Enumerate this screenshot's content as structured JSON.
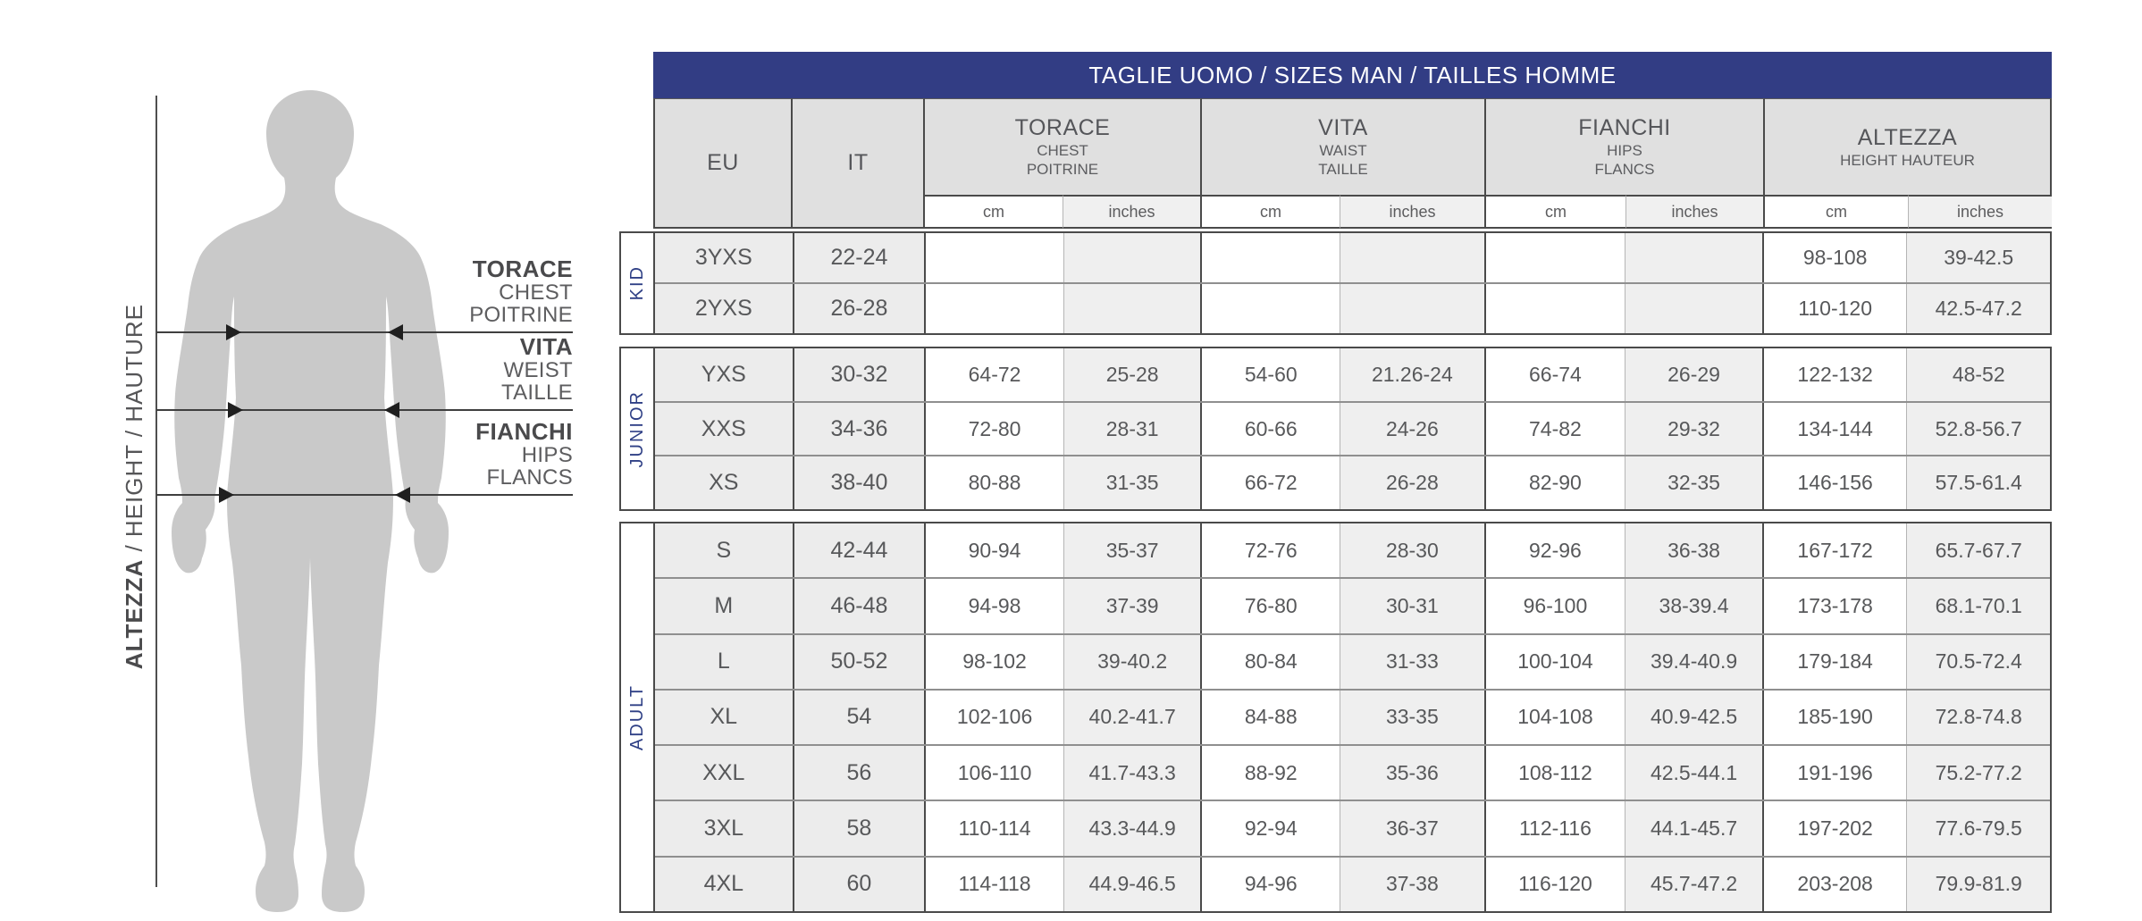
{
  "colors": {
    "accent_navy": "#323d84",
    "section_label_navy": "#2e3f85",
    "silhouette_gray": "#c9c9c9",
    "header_cell_gray": "#e0e0e0",
    "alt_cell_gray": "#efefef"
  },
  "figure": {
    "measure_labels": [
      {
        "primary": "TORACE",
        "secondary": [
          "CHEST",
          "POITRINE"
        ]
      },
      {
        "primary": "VITA",
        "secondary": [
          "WEIST",
          "TAILLE"
        ]
      },
      {
        "primary": "FIANCHI",
        "secondary": [
          "HIPS",
          "FLANCS"
        ]
      }
    ],
    "height_label": {
      "primary": "ALTEZZA",
      "secondary": " / HEIGHT / HAUTURE"
    }
  },
  "table": {
    "title": "TAGLIE UOMO / SIZES MAN / TAILLES HOMME",
    "columns": {
      "eu": "EU",
      "it": "IT"
    },
    "groups": [
      {
        "label": "TORACE",
        "sub": [
          "CHEST",
          "POITRINE"
        ]
      },
      {
        "label": "VITA",
        "sub": [
          "WAIST",
          "TAILLE"
        ]
      },
      {
        "label": "FIANCHI",
        "sub": [
          "HIPS",
          "FLANCS"
        ]
      },
      {
        "label": "ALTEZZA",
        "sub": [
          "HEIGHT HAUTEUR"
        ]
      }
    ],
    "units": [
      "cm",
      "inches",
      "cm",
      "inches",
      "cm",
      "inches",
      "cm",
      "inches"
    ],
    "sections": [
      {
        "name": "KID",
        "rows": [
          {
            "eu": "3YXS",
            "it": "22-24",
            "values": [
              "",
              "",
              "",
              "",
              "",
              "",
              "98-108",
              "39-42.5"
            ]
          },
          {
            "eu": "2YXS",
            "it": "26-28",
            "values": [
              "",
              "",
              "",
              "",
              "",
              "",
              "110-120",
              "42.5-47.2"
            ]
          }
        ]
      },
      {
        "name": "JUNIOR",
        "rows": [
          {
            "eu": "YXS",
            "it": "30-32",
            "values": [
              "64-72",
              "25-28",
              "54-60",
              "21.26-24",
              "66-74",
              "26-29",
              "122-132",
              "48-52"
            ]
          },
          {
            "eu": "XXS",
            "it": "34-36",
            "values": [
              "72-80",
              "28-31",
              "60-66",
              "24-26",
              "74-82",
              "29-32",
              "134-144",
              "52.8-56.7"
            ]
          },
          {
            "eu": "XS",
            "it": "38-40",
            "values": [
              "80-88",
              "31-35",
              "66-72",
              "26-28",
              "82-90",
              "32-35",
              "146-156",
              "57.5-61.4"
            ]
          }
        ]
      },
      {
        "name": "ADULT",
        "rows": [
          {
            "eu": "S",
            "it": "42-44",
            "values": [
              "90-94",
              "35-37",
              "72-76",
              "28-30",
              "92-96",
              "36-38",
              "167-172",
              "65.7-67.7"
            ]
          },
          {
            "eu": "M",
            "it": "46-48",
            "values": [
              "94-98",
              "37-39",
              "76-80",
              "30-31",
              "96-100",
              "38-39.4",
              "173-178",
              "68.1-70.1"
            ]
          },
          {
            "eu": "L",
            "it": "50-52",
            "values": [
              "98-102",
              "39-40.2",
              "80-84",
              "31-33",
              "100-104",
              "39.4-40.9",
              "179-184",
              "70.5-72.4"
            ]
          },
          {
            "eu": "XL",
            "it": "54",
            "values": [
              "102-106",
              "40.2-41.7",
              "84-88",
              "33-35",
              "104-108",
              "40.9-42.5",
              "185-190",
              "72.8-74.8"
            ]
          },
          {
            "eu": "XXL",
            "it": "56",
            "values": [
              "106-110",
              "41.7-43.3",
              "88-92",
              "35-36",
              "108-112",
              "42.5-44.1",
              "191-196",
              "75.2-77.2"
            ]
          },
          {
            "eu": "3XL",
            "it": "58",
            "values": [
              "110-114",
              "43.3-44.9",
              "92-94",
              "36-37",
              "112-116",
              "44.1-45.7",
              "197-202",
              "77.6-79.5"
            ]
          },
          {
            "eu": "4XL",
            "it": "60",
            "values": [
              "114-118",
              "44.9-46.5",
              "94-96",
              "37-38",
              "116-120",
              "45.7-47.2",
              "203-208",
              "79.9-81.9"
            ]
          }
        ]
      }
    ]
  }
}
